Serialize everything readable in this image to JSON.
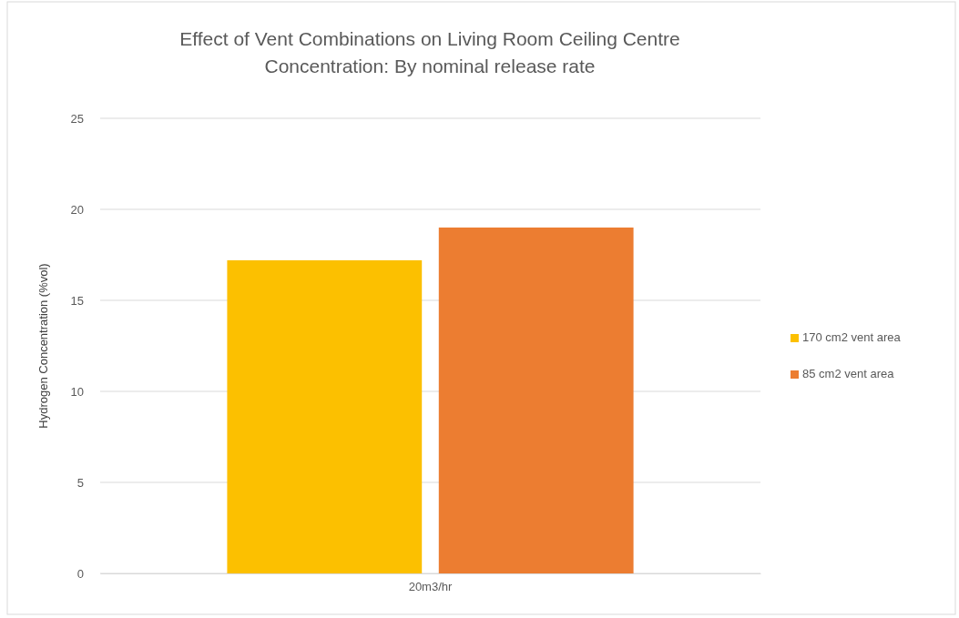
{
  "chart_data": {
    "type": "bar",
    "title": "Effect of Vent Combinations on Living Room Ceiling Centre Concentration: By nominal release rate",
    "ylabel": "Hydrogen Concentration (%vol)",
    "categories": [
      "20m3/hr"
    ],
    "series": [
      {
        "name": "170 cm2 vent area",
        "color": "#fcc000",
        "values": [
          17.2
        ]
      },
      {
        "name": "85 cm2 vent area",
        "color": "#ec7d31",
        "values": [
          19.0
        ]
      }
    ],
    "ylim": [
      0,
      25
    ],
    "yticks": [
      0,
      5,
      10,
      15,
      20,
      25
    ],
    "grid": "y",
    "legend": "right"
  }
}
